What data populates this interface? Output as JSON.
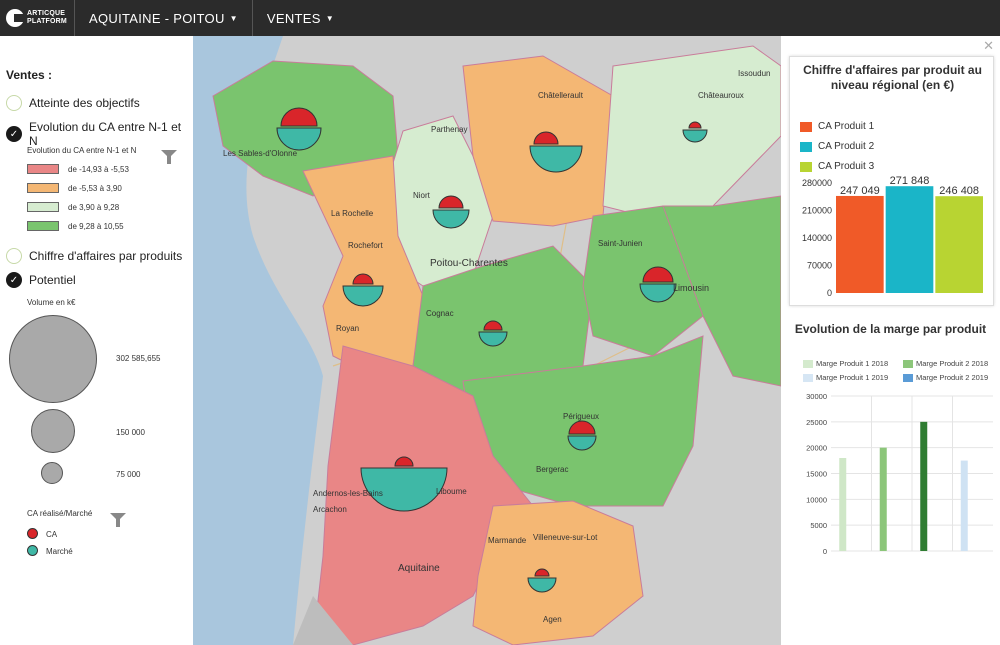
{
  "app": {
    "logo_line1": "ARTICQUE",
    "logo_line2": "PLATFORM"
  },
  "nav": {
    "region": "AQUITAINE - POITOU",
    "menu": "VENTES"
  },
  "left_panel": {
    "title": "Ventes :",
    "layers": [
      {
        "label": "Atteinte des objectifs",
        "checked": false
      },
      {
        "label": "Evolution du CA entre N-1 et N",
        "checked": true
      },
      {
        "label": "Chiffre d'affaires par produits",
        "checked": false
      },
      {
        "label": "Potentiel",
        "checked": true
      }
    ],
    "evolution_legend": {
      "title": "Evolution du CA entre N-1 et N",
      "classes": [
        {
          "label": "de -14,93 à -5,53",
          "color": "#e98686"
        },
        {
          "label": "de -5,53 à 3,90",
          "color": "#f4b774"
        },
        {
          "label": "de 3,90 à 9,28",
          "color": "#d6ecd0"
        },
        {
          "label": "de 9,28 à 10,55",
          "color": "#7ac46e"
        }
      ]
    },
    "volume_legend": {
      "title": "Volume en k€",
      "values": [
        "302 585,655",
        "150 000",
        "75 000"
      ]
    },
    "ca_legend": {
      "title": "CA réalisé/Marché",
      "items": [
        {
          "label": "CA",
          "color": "#d9252a"
        },
        {
          "label": "Marché",
          "color": "#3fb8a6"
        }
      ]
    }
  },
  "map": {
    "labels": [
      "Poitou-Charentes",
      "Limousin",
      "Aquitaine",
      "Liboume",
      "Parthenay",
      "Châtellerault",
      "Châteauroux",
      "Issoudun",
      "La Rochelle",
      "Royan",
      "Cognac",
      "Périgueux",
      "Bergerac",
      "Marmande",
      "Villeneuve-sur-Lot",
      "Agen",
      "Arcachon",
      "Rochefort",
      "Niort",
      "Les Sables-d'Olonne",
      "Saint-Junien",
      "Andernos-les-Bains"
    ]
  },
  "right_panel": {
    "chart1": {
      "title": "Chiffre d'affaires par produit au niveau régional (en €)",
      "legend": [
        {
          "label": "CA Produit 1",
          "color": "#f05a28"
        },
        {
          "label": "CA Produit 2",
          "color": "#1ab5c8"
        },
        {
          "label": "CA Produit 3",
          "color": "#b8d432"
        }
      ]
    },
    "chart2": {
      "title": "Evolution de la marge par produit",
      "legend": [
        {
          "label": "Marge Produit 1 2018",
          "color": "#d4eacd"
        },
        {
          "label": "Marge Produit 2 2018",
          "color": "#8cc67a"
        },
        {
          "label": "Marge Produit 1 2019",
          "color": "#d6e6f4"
        },
        {
          "label": "Marge Produit 2 2019",
          "color": "#5a9bd6"
        }
      ]
    }
  },
  "chart_data": [
    {
      "type": "bar",
      "categories": [
        "CA Produit 1",
        "CA Produit 2",
        "CA Produit 3"
      ],
      "values": [
        247049,
        271848,
        246408
      ],
      "data_labels": [
        "247 049",
        "271 848",
        "246 408"
      ],
      "yticks": [
        "0",
        "70000",
        "140000",
        "210000",
        "280000"
      ],
      "ylim": [
        0,
        280000
      ],
      "colors": [
        "#f05a28",
        "#1ab5c8",
        "#b8d432"
      ]
    },
    {
      "type": "bar",
      "series": [
        {
          "name": "Marge Produit 1 2018",
          "values": [
            18000
          ]
        },
        {
          "name": "Marge Produit 2 2018",
          "values": [
            20000
          ]
        },
        {
          "name": "Marge Produit 2 2019",
          "values": [
            25000
          ]
        },
        {
          "name": "Marge Produit 1 2019",
          "values": [
            17500
          ]
        }
      ],
      "colors": [
        "#cfe7c7",
        "#8cc67a",
        "#2f7d32",
        "#cfe2f3"
      ],
      "yticks": [
        "0",
        "5000",
        "10000",
        "15000",
        "20000",
        "25000",
        "30000"
      ],
      "ylim": [
        0,
        30000
      ],
      "grid": true
    }
  ]
}
